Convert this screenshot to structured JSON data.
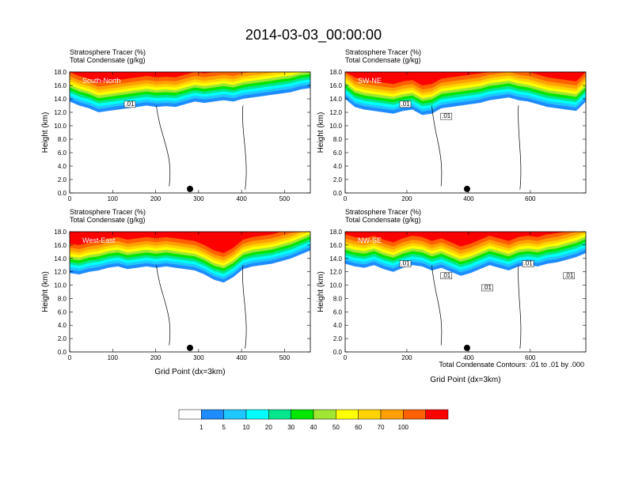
{
  "figure": {
    "title": "2014-03-03_00:00:00",
    "contour_note": "Total Condensate Contours: .01 to .01 by .000"
  },
  "chart_data": [
    {
      "type": "heatmap",
      "panel": "South-North",
      "subtitle": "Stratosphere Tracer   (%)",
      "subtitle2": "Total Condensate   (g/kg)",
      "ylabel": "Height (km)",
      "xlabel": "",
      "xlim": [
        0,
        560
      ],
      "ylim": [
        0,
        18
      ],
      "xticks": [
        "0",
        "100",
        "200",
        "300",
        "400",
        "500"
      ],
      "xtick_values": [
        0,
        100,
        200,
        300,
        400,
        500
      ],
      "yticks": [
        "0.0",
        "2.0",
        "4.0",
        "6.0",
        "8.0",
        "10.0",
        "12.0",
        "14.0",
        "16.0",
        "18.0"
      ],
      "contour_labels": [
        ".01"
      ],
      "marker_x": 280,
      "tracer_base_km": [
        13.6,
        13.0,
        12.6,
        12.0,
        12.2,
        12.4,
        12.6,
        12.8,
        13.0,
        12.8,
        12.9,
        12.8,
        13.2,
        13.6,
        13.4,
        13.6,
        13.8,
        13.6,
        14.0,
        14.2,
        14.4,
        14.6,
        14.8,
        15.0,
        15.4,
        15.6
      ]
    },
    {
      "type": "heatmap",
      "panel": "SW-NE",
      "subtitle": "Stratosphere Tracer   (%)",
      "subtitle2": "Total Condensate   (g/kg)",
      "ylabel": "Height (km)",
      "xlabel": "",
      "xlim": [
        0,
        780
      ],
      "ylim": [
        0,
        18
      ],
      "xticks": [
        "0",
        "200",
        "400",
        "600"
      ],
      "xtick_values": [
        0,
        200,
        400,
        600
      ],
      "yticks": [
        "0.0",
        "2.0",
        "4.0",
        "6.0",
        "8.0",
        "10.0",
        "12.0",
        "14.0",
        "16.0",
        "18.0"
      ],
      "contour_labels": [
        ".01",
        ".01"
      ],
      "marker_x": 395,
      "tracer_base_km": [
        14.0,
        12.8,
        12.4,
        12.2,
        12.0,
        11.8,
        12.2,
        12.4,
        11.6,
        11.8,
        12.6,
        12.8,
        13.0,
        13.2,
        13.4,
        13.8,
        14.0,
        14.2,
        13.8,
        13.6,
        13.2,
        12.8,
        12.6,
        12.4,
        12.2,
        13.6
      ]
    },
    {
      "type": "heatmap",
      "panel": "West-East",
      "subtitle": "Stratosphere Tracer   (%)",
      "subtitle2": "Total Condensate   (g/kg)",
      "ylabel": "Height (km)",
      "xlabel": "Grid Point (dx=3km)",
      "xlim": [
        0,
        560
      ],
      "ylim": [
        0,
        18
      ],
      "xticks": [
        "0",
        "100",
        "200",
        "300",
        "400",
        "500"
      ],
      "xtick_values": [
        0,
        100,
        200,
        300,
        400,
        500
      ],
      "yticks": [
        "0.0",
        "2.0",
        "4.0",
        "6.0",
        "8.0",
        "10.0",
        "12.0",
        "14.0",
        "16.0",
        "18.0"
      ],
      "contour_labels": [],
      "marker_x": 280,
      "tracer_base_km": [
        11.8,
        11.6,
        12.0,
        12.2,
        12.6,
        12.8,
        12.4,
        12.6,
        12.8,
        12.6,
        12.8,
        12.6,
        12.4,
        12.2,
        11.6,
        10.8,
        10.4,
        11.2,
        12.4,
        12.8,
        13.0,
        13.2,
        13.6,
        14.0,
        14.6,
        15.2
      ]
    },
    {
      "type": "heatmap",
      "panel": "NW-SE",
      "subtitle": "Stratosphere Tracer   (%)",
      "subtitle2": "Total Condensate   (g/kg)",
      "ylabel": "Height (km)",
      "xlabel": "Grid Point (dx=3km)",
      "xlim": [
        0,
        780
      ],
      "ylim": [
        0,
        18
      ],
      "xticks": [
        "0",
        "200",
        "400",
        "600"
      ],
      "xtick_values": [
        0,
        200,
        400,
        600
      ],
      "yticks": [
        "0.0",
        "2.0",
        "4.0",
        "6.0",
        "8.0",
        "10.0",
        "12.0",
        "14.0",
        "16.0",
        "18.0"
      ],
      "contour_labels": [
        ".01",
        ".01",
        ".01",
        ".01",
        ".01"
      ],
      "marker_x": 395,
      "tracer_base_km": [
        13.2,
        12.8,
        12.6,
        13.0,
        12.4,
        12.0,
        12.6,
        13.0,
        12.8,
        12.2,
        12.6,
        12.0,
        11.4,
        11.8,
        12.4,
        13.0,
        12.6,
        12.2,
        12.8,
        13.0,
        12.8,
        13.2,
        13.4,
        13.8,
        14.2,
        14.8
      ]
    }
  ],
  "colorbar": {
    "labels": [
      "1",
      "5",
      "10",
      "20",
      "30",
      "40",
      "50",
      "60",
      "70",
      "100"
    ],
    "colors": [
      "#ffffff",
      "#1e8cff",
      "#1ec8ff",
      "#00ffff",
      "#00e68c",
      "#00e600",
      "#a0e632",
      "#ffff00",
      "#ffd200",
      "#ffa000",
      "#ff6000",
      "#ff0000"
    ]
  }
}
